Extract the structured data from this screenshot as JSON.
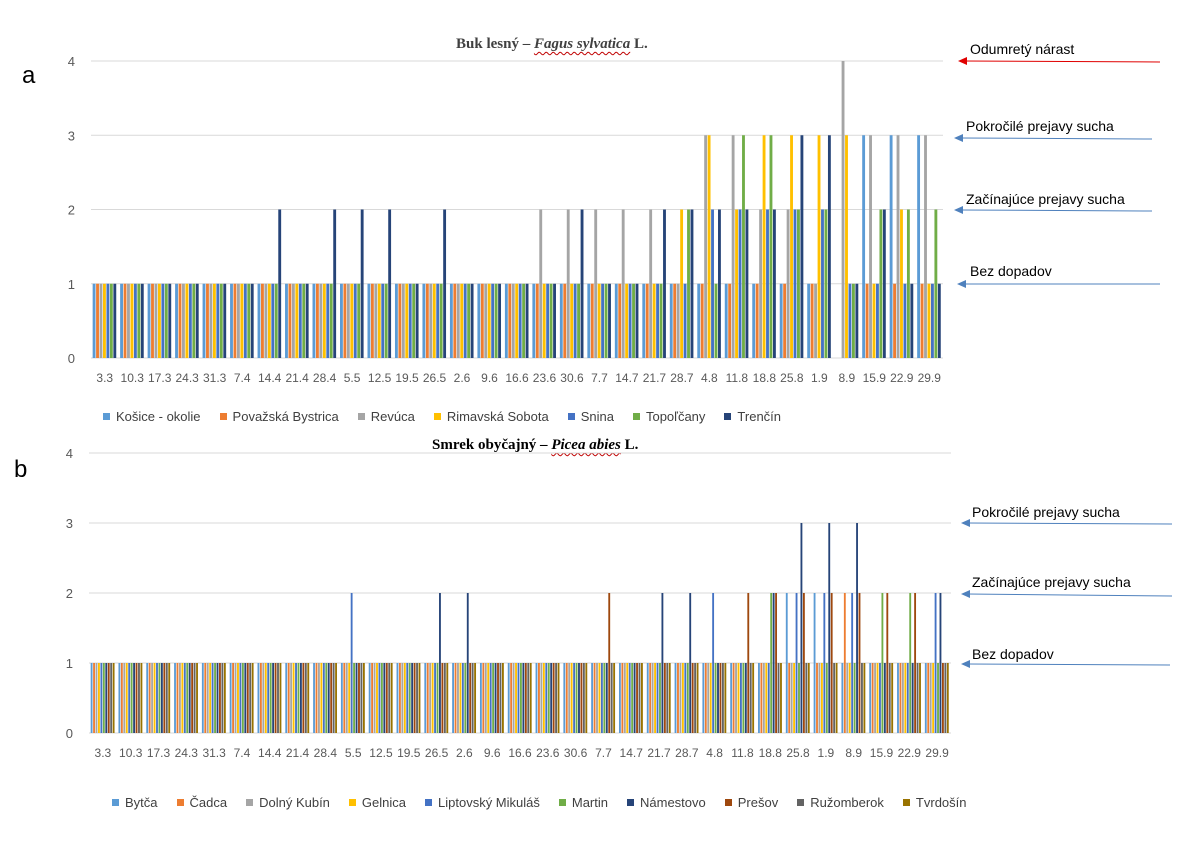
{
  "panel_labels": {
    "a": "a",
    "b": "b"
  },
  "annotations": {
    "a": [
      "Odumretý nárast",
      "Pokročilé prejavy sucha",
      "Začínajúce prejavy sucha",
      "Bez dopadov"
    ],
    "b": [
      "Pokročilé prejavy sucha",
      "Začínajúce prejavy sucha",
      "Bez dopadov"
    ],
    "arrow_colors": {
      "red": "#e00000",
      "blue": "#4f81bd"
    }
  },
  "chart_data": [
    {
      "id": "a",
      "type": "bar",
      "title_prefix": "Buk lesný – ",
      "title_italic": "Fagus sylvatica",
      "title_suffix": " L.",
      "ylim": [
        0,
        4
      ],
      "yticks": [
        "0",
        "1",
        "2",
        "3",
        "4"
      ],
      "grid": true,
      "legend_position": "bottom",
      "categories": [
        "3.3",
        "10.3",
        "17.3",
        "24.3",
        "31.3",
        "7.4",
        "14.4",
        "21.4",
        "28.4",
        "5.5",
        "12.5",
        "19.5",
        "26.5",
        "2.6",
        "9.6",
        "16.6",
        "23.6",
        "30.6",
        "7.7",
        "14.7",
        "21.7",
        "28.7",
        "4.8",
        "11.8",
        "18.8",
        "25.8",
        "1.9",
        "8.9",
        "15.9",
        "22.9",
        "29.9"
      ],
      "xtick_labels": [
        "3.3",
        "10.3",
        "17.3",
        "24.3",
        "31.3",
        "7.4",
        "14.4",
        "21.4",
        "28.4",
        "5.5",
        "12.5",
        "19.5",
        "26.5",
        "2.6",
        "9.6",
        "16.6",
        "23.6",
        "30.6",
        "7.7",
        "14.7",
        "21.7",
        "28.7",
        "4.8",
        "11.8",
        "18.8",
        "25.8",
        "1.9",
        "8.9",
        "15.9",
        "22.9",
        "29.9"
      ],
      "series": [
        {
          "name": "Košice - okolie",
          "color": "#5b9bd5",
          "values": [
            1,
            1,
            1,
            1,
            1,
            1,
            1,
            1,
            1,
            1,
            1,
            1,
            1,
            1,
            1,
            1,
            1,
            1,
            1,
            1,
            1,
            1,
            1,
            1,
            1,
            1,
            1,
            0,
            3,
            3,
            3
          ]
        },
        {
          "name": "Považská Bystrica",
          "color": "#ed7d31",
          "values": [
            1,
            1,
            1,
            1,
            1,
            1,
            1,
            1,
            1,
            1,
            1,
            1,
            1,
            1,
            1,
            1,
            1,
            1,
            1,
            1,
            1,
            1,
            1,
            1,
            1,
            1,
            1,
            0,
            1,
            1,
            1
          ]
        },
        {
          "name": "Revúca",
          "color": "#a5a5a5",
          "values": [
            1,
            1,
            1,
            1,
            1,
            1,
            1,
            1,
            1,
            1,
            1,
            1,
            1,
            1,
            1,
            1,
            2,
            2,
            2,
            2,
            2,
            1,
            3,
            3,
            2,
            2,
            1,
            4,
            3,
            3,
            3
          ]
        },
        {
          "name": "Rimavská Sobota",
          "color": "#ffc000",
          "values": [
            1,
            1,
            1,
            1,
            1,
            1,
            1,
            1,
            1,
            1,
            1,
            1,
            1,
            1,
            1,
            1,
            1,
            1,
            1,
            1,
            1,
            2,
            3,
            2,
            3,
            3,
            3,
            3,
            1,
            2,
            1
          ]
        },
        {
          "name": "Snina",
          "color": "#4472c4",
          "values": [
            1,
            1,
            1,
            1,
            1,
            1,
            1,
            1,
            1,
            1,
            1,
            1,
            1,
            1,
            1,
            1,
            1,
            1,
            1,
            1,
            1,
            1,
            2,
            2,
            2,
            2,
            2,
            1,
            1,
            1,
            1
          ]
        },
        {
          "name": "Topoľčany",
          "color": "#70ad47",
          "values": [
            1,
            1,
            1,
            1,
            1,
            1,
            1,
            1,
            1,
            1,
            1,
            1,
            1,
            1,
            1,
            1,
            1,
            1,
            1,
            1,
            1,
            2,
            1,
            3,
            3,
            2,
            2,
            1,
            2,
            2,
            2
          ]
        },
        {
          "name": "Trenčín",
          "color": "#264478",
          "values": [
            1,
            1,
            1,
            1,
            1,
            1,
            2,
            1,
            2,
            2,
            2,
            1,
            2,
            1,
            1,
            1,
            1,
            2,
            1,
            1,
            2,
            2,
            2,
            2,
            2,
            3,
            3,
            1,
            2,
            1,
            1
          ]
        }
      ]
    },
    {
      "id": "b",
      "type": "bar",
      "title_prefix": "Smrek obyčajný – ",
      "title_italic": "Picea abies",
      "title_suffix": " L.",
      "ylim": [
        0,
        4
      ],
      "yticks": [
        "0",
        "1",
        "2",
        "3",
        "4"
      ],
      "grid": true,
      "legend_position": "bottom",
      "categories": [
        "3.3",
        "10.3",
        "17.3",
        "24.3",
        "31.3",
        "7.4",
        "14.4",
        "21.4",
        "28.4",
        "5.5",
        "12.5",
        "19.5",
        "26.5",
        "2.6",
        "9.6",
        "16.6",
        "23.6",
        "30.6",
        "7.7",
        "14.7",
        "21.7",
        "28.7",
        "4.8",
        "11.8",
        "18.8",
        "25.8",
        "1.9",
        "8.9",
        "15.9",
        "22.9",
        "29.9"
      ],
      "xtick_labels": [
        "3.3",
        "10.3",
        "17.3",
        "24.3",
        "31.3",
        "7.4",
        "14.4",
        "21.4",
        "28.4",
        "5.5",
        "12.5",
        "19.5",
        "26.5",
        "2.6",
        "9.6",
        "16.6",
        "23.6",
        "30.6",
        "7.7",
        "14.7",
        "21.7",
        "28.7",
        "4.8",
        "11.8",
        "18.8",
        "25.8",
        "1.9",
        "8.9",
        "15.9",
        "22.9",
        "29.9"
      ],
      "series": [
        {
          "name": "Bytča",
          "color": "#5b9bd5",
          "values": [
            1,
            1,
            1,
            1,
            1,
            1,
            1,
            1,
            1,
            1,
            1,
            1,
            1,
            1,
            1,
            1,
            1,
            1,
            1,
            1,
            1,
            1,
            1,
            1,
            1,
            2,
            2,
            1,
            1,
            1,
            1
          ]
        },
        {
          "name": "Čadca",
          "color": "#ed7d31",
          "values": [
            1,
            1,
            1,
            1,
            1,
            1,
            1,
            1,
            1,
            1,
            1,
            1,
            1,
            1,
            1,
            1,
            1,
            1,
            1,
            1,
            1,
            1,
            1,
            1,
            1,
            1,
            1,
            2,
            1,
            1,
            1
          ]
        },
        {
          "name": "Dolný Kubín",
          "color": "#a5a5a5",
          "values": [
            1,
            1,
            1,
            1,
            1,
            1,
            1,
            1,
            1,
            1,
            1,
            1,
            1,
            1,
            1,
            1,
            1,
            1,
            1,
            1,
            1,
            1,
            1,
            1,
            1,
            1,
            1,
            1,
            1,
            1,
            1
          ]
        },
        {
          "name": "Gelnica",
          "color": "#ffc000",
          "values": [
            1,
            1,
            1,
            1,
            1,
            1,
            1,
            1,
            1,
            1,
            1,
            1,
            1,
            1,
            1,
            1,
            1,
            1,
            1,
            1,
            1,
            1,
            1,
            1,
            1,
            1,
            1,
            1,
            1,
            1,
            1
          ]
        },
        {
          "name": "Liptovský Mikuláš",
          "color": "#4472c4",
          "values": [
            1,
            1,
            1,
            1,
            1,
            1,
            1,
            1,
            1,
            2,
            1,
            1,
            1,
            1,
            1,
            1,
            1,
            1,
            1,
            1,
            1,
            1,
            2,
            1,
            1,
            2,
            2,
            2,
            1,
            1,
            2
          ]
        },
        {
          "name": "Martin",
          "color": "#70ad47",
          "values": [
            1,
            1,
            1,
            1,
            1,
            1,
            1,
            1,
            1,
            1,
            1,
            1,
            1,
            1,
            1,
            1,
            1,
            1,
            1,
            1,
            1,
            1,
            1,
            1,
            2,
            1,
            1,
            1,
            2,
            2,
            1
          ]
        },
        {
          "name": "Námestovo",
          "color": "#264478",
          "values": [
            1,
            1,
            1,
            1,
            1,
            1,
            1,
            1,
            1,
            1,
            1,
            1,
            2,
            2,
            1,
            1,
            1,
            1,
            1,
            1,
            2,
            2,
            1,
            1,
            2,
            3,
            3,
            3,
            1,
            1,
            2
          ]
        },
        {
          "name": "Prešov",
          "color": "#9e480e",
          "values": [
            1,
            1,
            1,
            1,
            1,
            1,
            1,
            1,
            1,
            1,
            1,
            1,
            1,
            1,
            1,
            1,
            1,
            1,
            2,
            1,
            1,
            1,
            1,
            2,
            2,
            2,
            2,
            2,
            2,
            2,
            1
          ]
        },
        {
          "name": "Ružomberok",
          "color": "#636363",
          "values": [
            1,
            1,
            1,
            1,
            1,
            1,
            1,
            1,
            1,
            1,
            1,
            1,
            1,
            1,
            1,
            1,
            1,
            1,
            1,
            1,
            1,
            1,
            1,
            1,
            1,
            1,
            1,
            1,
            1,
            1,
            1
          ]
        },
        {
          "name": "Tvrdošín",
          "color": "#997300",
          "values": [
            1,
            1,
            1,
            1,
            1,
            1,
            1,
            1,
            1,
            1,
            1,
            1,
            1,
            1,
            1,
            1,
            1,
            1,
            1,
            1,
            1,
            1,
            1,
            1,
            1,
            1,
            1,
            1,
            1,
            1,
            1
          ]
        }
      ]
    }
  ]
}
